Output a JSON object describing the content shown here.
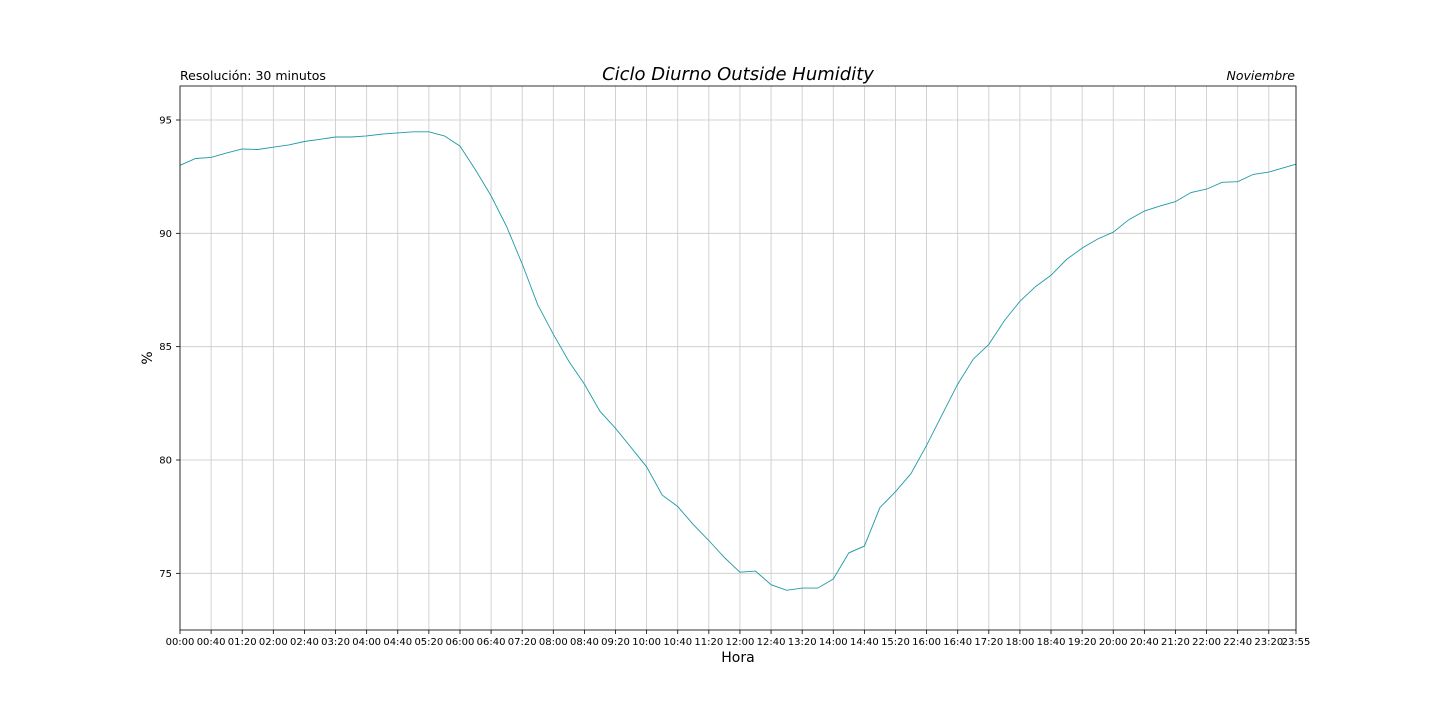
{
  "chart_data": {
    "type": "line",
    "title": "Ciclo Diurno Outside Humidity",
    "subtitle_left": "Resolución: 30 minutos",
    "subtitle_right": "Noviembre",
    "xlabel": "Hora",
    "ylabel": "%",
    "ylim": [
      72.5,
      96.5
    ],
    "yticks": [
      75,
      80,
      85,
      90,
      95
    ],
    "grid": true,
    "line_color": "#1f9aa6",
    "xticks": [
      "00:00",
      "00:40",
      "01:20",
      "02:00",
      "02:40",
      "03:20",
      "04:00",
      "04:40",
      "05:20",
      "06:00",
      "06:40",
      "07:20",
      "08:00",
      "08:40",
      "09:20",
      "10:00",
      "10:40",
      "11:20",
      "12:00",
      "12:40",
      "13:20",
      "14:00",
      "14:40",
      "15:20",
      "16:00",
      "16:40",
      "17:20",
      "18:00",
      "18:40",
      "19:20",
      "20:00",
      "20:40",
      "21:20",
      "22:00",
      "22:40",
      "23:20",
      "23:55"
    ],
    "series": [
      {
        "x": [
          "00:00",
          "00:20",
          "00:40",
          "01:00",
          "01:20",
          "01:40",
          "02:00",
          "02:20",
          "02:40",
          "03:00",
          "03:20",
          "03:40",
          "04:00",
          "04:20",
          "04:40",
          "05:00",
          "05:20",
          "05:40",
          "06:00",
          "06:20",
          "06:40",
          "07:00",
          "07:20",
          "07:40",
          "08:00",
          "08:20",
          "08:40",
          "09:00",
          "09:20",
          "09:40",
          "10:00",
          "10:20",
          "10:40",
          "11:00",
          "11:20",
          "11:40",
          "12:00",
          "12:20",
          "12:40",
          "13:00",
          "13:20",
          "13:40",
          "14:00",
          "14:20",
          "14:40",
          "15:00",
          "15:20",
          "15:40",
          "16:00",
          "16:20",
          "16:40",
          "17:00",
          "17:20",
          "17:40",
          "18:00",
          "18:20",
          "18:40",
          "19:00",
          "19:20",
          "19:40",
          "20:00",
          "20:20",
          "20:40",
          "21:00",
          "21:20",
          "21:40",
          "22:00",
          "22:20",
          "22:40",
          "23:00",
          "23:20",
          "23:40",
          "23:55"
        ],
        "values": [
          93.0,
          93.3,
          93.35,
          93.55,
          93.72,
          93.7,
          93.8,
          93.9,
          94.05,
          94.15,
          94.25,
          94.25,
          94.3,
          94.38,
          94.43,
          94.48,
          94.48,
          94.3,
          93.85,
          92.8,
          91.65,
          90.3,
          88.65,
          86.85,
          85.55,
          84.35,
          83.35,
          82.15,
          81.4,
          80.55,
          79.7,
          78.45,
          77.95,
          77.15,
          76.45,
          75.7,
          75.05,
          75.1,
          74.5,
          74.25,
          74.35,
          74.35,
          74.75,
          75.9,
          76.2,
          77.9,
          78.6,
          79.4,
          80.65,
          82.0,
          83.35,
          84.45,
          85.1,
          86.15,
          87.0,
          87.65,
          88.15,
          88.85,
          89.35,
          89.75,
          90.05,
          90.6,
          90.98,
          91.2,
          91.4,
          91.8,
          91.95,
          92.25,
          92.28,
          92.6,
          92.7,
          92.9,
          93.05
        ]
      }
    ]
  }
}
